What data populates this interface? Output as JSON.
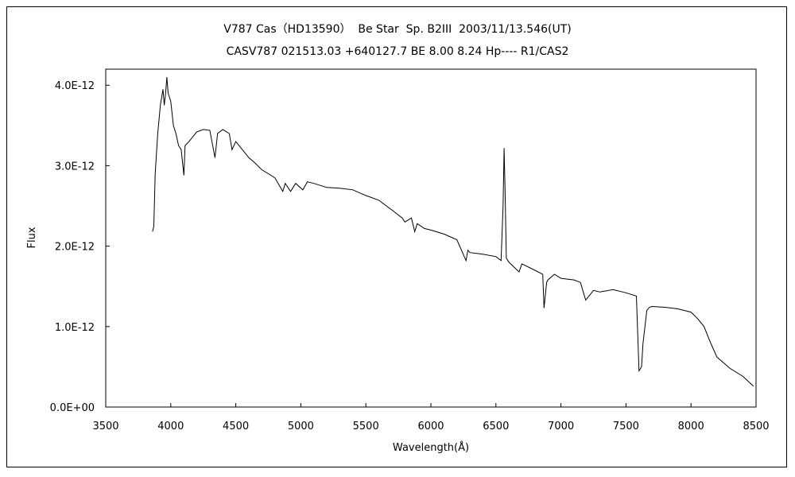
{
  "chart_data": {
    "type": "line",
    "title": "V787 Cas（HD13590）  Be Star  Sp. B2III  2003/11/13.546(UT)",
    "subtitle": "CASV787 021513.03 +640127.7 BE 8.00 8.24 Hp---- R1/CAS2",
    "xlabel": "Wavelength(Å)",
    "ylabel": "Flux",
    "xlim": [
      3500,
      8500
    ],
    "ylim": [
      0,
      4.2e-12
    ],
    "x_ticks": [
      3500,
      4000,
      4500,
      5000,
      5500,
      6000,
      6500,
      7000,
      7500,
      8000,
      8500
    ],
    "x_tick_labels": [
      "3500",
      "4000",
      "4500",
      "5000",
      "5500",
      "6000",
      "6500",
      "7000",
      "7500",
      "8000",
      "8500"
    ],
    "y_ticks": [
      0,
      1e-12,
      2e-12,
      3e-12,
      4e-12
    ],
    "y_tick_labels": [
      "0.0E+00",
      "1.0E-12",
      "2.0E-12",
      "3.0E-12",
      "4.0E-12"
    ],
    "grid": false,
    "legend": "none",
    "line_color": "#000000",
    "series": [
      {
        "x": [
          3860,
          3870,
          3880,
          3900,
          3920,
          3940,
          3950,
          3960,
          3970,
          3980,
          3990,
          4000,
          4020,
          4040,
          4060,
          4080,
          4101,
          4110,
          4140,
          4200,
          4250,
          4300,
          4340,
          4360,
          4400,
          4450,
          4471,
          4500,
          4550,
          4600,
          4650,
          4700,
          4750,
          4800,
          4861,
          4880,
          4921,
          4960,
          5015,
          5050,
          5100,
          5200,
          5300,
          5400,
          5500,
          5600,
          5700,
          5780,
          5800,
          5850,
          5876,
          5895,
          5950,
          6000,
          6100,
          6200,
          6270,
          6284,
          6300,
          6400,
          6500,
          6540,
          6555,
          6563,
          6570,
          6580,
          6600,
          6678,
          6700,
          6800,
          6860,
          6870,
          6890,
          6900,
          6950,
          7000,
          7100,
          7150,
          7190,
          7250,
          7300,
          7400,
          7500,
          7580,
          7600,
          7620,
          7630,
          7660,
          7680,
          7700,
          7800,
          7900,
          8000,
          8050,
          8100,
          8150,
          8200,
          8300,
          8400,
          8480
        ],
        "y": [
          2.18e-12,
          2.25e-12,
          2.9e-12,
          3.4e-12,
          3.75e-12,
          3.95e-12,
          3.75e-12,
          3.9e-12,
          4.1e-12,
          3.9e-12,
          3.85e-12,
          3.8e-12,
          3.5e-12,
          3.4e-12,
          3.25e-12,
          3.2e-12,
          2.88e-12,
          3.25e-12,
          3.3e-12,
          3.42e-12,
          3.45e-12,
          3.44e-12,
          3.1e-12,
          3.4e-12,
          3.45e-12,
          3.4e-12,
          3.2e-12,
          3.3e-12,
          3.2e-12,
          3.1e-12,
          3.03e-12,
          2.95e-12,
          2.9e-12,
          2.85e-12,
          2.68e-12,
          2.78e-12,
          2.68e-12,
          2.78e-12,
          2.7e-12,
          2.8e-12,
          2.78e-12,
          2.73e-12,
          2.72e-12,
          2.7e-12,
          2.63e-12,
          2.57e-12,
          2.45e-12,
          2.35e-12,
          2.3e-12,
          2.35e-12,
          2.18e-12,
          2.28e-12,
          2.22e-12,
          2.2e-12,
          2.15e-12,
          2.08e-12,
          1.82e-12,
          1.95e-12,
          1.92e-12,
          1.9e-12,
          1.87e-12,
          1.82e-12,
          2.5e-12,
          3.22e-12,
          2.7e-12,
          1.85e-12,
          1.8e-12,
          1.68e-12,
          1.78e-12,
          1.7e-12,
          1.65e-12,
          1.23e-12,
          1.55e-12,
          1.58e-12,
          1.65e-12,
          1.6e-12,
          1.58e-12,
          1.55e-12,
          1.33e-12,
          1.45e-12,
          1.43e-12,
          1.46e-12,
          1.42e-12,
          1.38e-12,
          4.5e-13,
          5e-13,
          7.8e-13,
          1.2e-12,
          1.24e-12,
          1.25e-12,
          1.24e-12,
          1.22e-12,
          1.18e-12,
          1.1e-12,
          1e-12,
          8e-13,
          6.2e-13,
          4.8e-13,
          3.8e-13,
          2.6e-13
        ]
      }
    ]
  }
}
